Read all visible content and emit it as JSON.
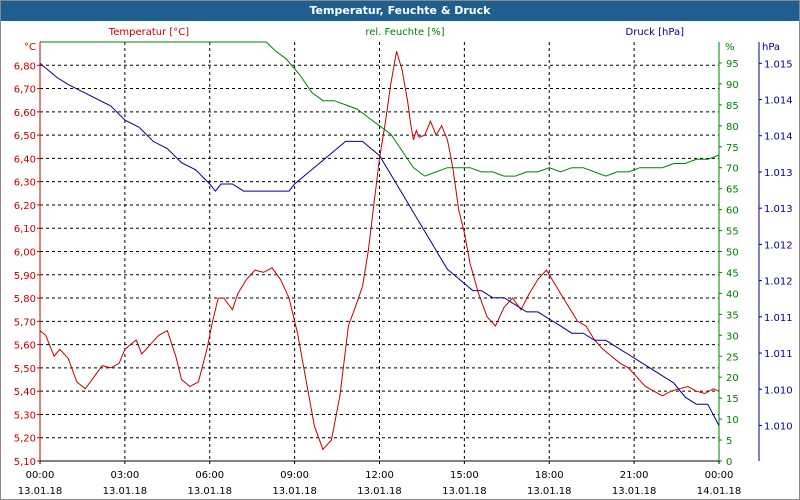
{
  "chart_data": {
    "type": "line",
    "title": "Temperatur, Feuchte & Druck",
    "colors": {
      "temperature": "#c00000",
      "humidity": "#008000",
      "pressure": "#00008b",
      "titlebar": "#1f5f8f",
      "grid": "#000000"
    },
    "axes": {
      "left": {
        "label": "Temperatur [°C]",
        "unit": "°C",
        "range": [
          5.1,
          6.9
        ],
        "ticks": [
          "6,80",
          "6,70",
          "6,60",
          "6,50",
          "6,40",
          "6,30",
          "6,20",
          "6,10",
          "6,00",
          "5,90",
          "5,80",
          "5,70",
          "5,60",
          "5,50",
          "5,40",
          "5,30",
          "5,20",
          "5,10"
        ]
      },
      "mid": {
        "label": "rel. Feuchte [%]",
        "unit": "%",
        "range": [
          0,
          100
        ],
        "ticks": [
          "95",
          "90",
          "85",
          "80",
          "75",
          "70",
          "65",
          "60",
          "55",
          "50",
          "45",
          "40",
          "35",
          "30",
          "25",
          "20",
          "15",
          "10",
          "5",
          "0"
        ]
      },
      "right": {
        "label": "Druck [hPa]",
        "unit": "hPa",
        "range": [
          1.0095,
          1.0154
        ],
        "ticks": [
          "1.015",
          "1.014",
          "1.014",
          "1.013",
          "1.013",
          "1.012",
          "1.012",
          "1.011",
          "1.011",
          "1.010",
          "1.010"
        ]
      },
      "x_ticks": [
        {
          "time": "00:00",
          "date": "13.01.18"
        },
        {
          "time": "03:00",
          "date": "13.01.18"
        },
        {
          "time": "06:00",
          "date": "13.01.18"
        },
        {
          "time": "09:00",
          "date": "13.01.18"
        },
        {
          "time": "12:00",
          "date": "13.01.18"
        },
        {
          "time": "15:00",
          "date": "13.01.18"
        },
        {
          "time": "18:00",
          "date": "13.01.18"
        },
        {
          "time": "21:00",
          "date": "13.01.18"
        },
        {
          "time": "00:00",
          "date": "14.01.18"
        }
      ]
    },
    "x_range_hours": [
      0,
      24
    ],
    "series": [
      {
        "name": "Temperatur [°C]",
        "x": [
          0,
          0.2,
          0.5,
          0.7,
          1.0,
          1.3,
          1.6,
          1.9,
          2.2,
          2.5,
          2.8,
          3.0,
          3.2,
          3.4,
          3.6,
          3.9,
          4.2,
          4.5,
          4.8,
          5.0,
          5.3,
          5.6,
          5.9,
          6.1,
          6.3,
          6.5,
          6.8,
          7.0,
          7.3,
          7.6,
          7.9,
          8.2,
          8.5,
          8.8,
          9.1,
          9.4,
          9.7,
          10.0,
          10.3,
          10.6,
          10.9,
          11.2,
          11.4,
          11.6,
          11.8,
          12.0,
          12.2,
          12.4,
          12.6,
          12.8,
          13.0,
          13.1,
          13.2,
          13.3,
          13.4,
          13.6,
          13.8,
          14.0,
          14.2,
          14.4,
          14.5,
          14.6,
          14.8,
          15.0,
          15.2,
          15.5,
          15.8,
          16.1,
          16.4,
          16.7,
          17.0,
          17.3,
          17.6,
          17.9,
          18.2,
          18.5,
          18.8,
          19.0,
          19.3,
          19.6,
          19.9,
          20.2,
          20.5,
          20.8,
          21.1,
          21.4,
          21.7,
          22.0,
          22.3,
          22.6,
          22.9,
          23.2,
          23.5,
          23.8,
          24.0
        ],
        "values": [
          5.66,
          5.64,
          5.55,
          5.58,
          5.54,
          5.44,
          5.41,
          5.46,
          5.51,
          5.5,
          5.52,
          5.58,
          5.6,
          5.62,
          5.56,
          5.6,
          5.64,
          5.66,
          5.55,
          5.45,
          5.42,
          5.44,
          5.58,
          5.7,
          5.8,
          5.8,
          5.75,
          5.82,
          5.88,
          5.92,
          5.91,
          5.93,
          5.88,
          5.8,
          5.65,
          5.45,
          5.25,
          5.15,
          5.19,
          5.38,
          5.68,
          5.78,
          5.85,
          6.0,
          6.2,
          6.4,
          6.55,
          6.72,
          6.86,
          6.78,
          6.64,
          6.55,
          6.48,
          6.52,
          6.49,
          6.5,
          6.56,
          6.5,
          6.54,
          6.48,
          6.42,
          6.35,
          6.18,
          6.08,
          5.95,
          5.82,
          5.72,
          5.68,
          5.76,
          5.8,
          5.75,
          5.82,
          5.88,
          5.92,
          5.86,
          5.8,
          5.74,
          5.7,
          5.68,
          5.62,
          5.58,
          5.55,
          5.52,
          5.5,
          5.46,
          5.42,
          5.4,
          5.38,
          5.4,
          5.41,
          5.42,
          5.4,
          5.39,
          5.41,
          5.4
        ],
        "values_note": "estimated from gridlines"
      },
      {
        "name": "rel. Feuchte [%]",
        "x": [
          0,
          1,
          2,
          3,
          4,
          5,
          6,
          7,
          8,
          8.3,
          8.7,
          9.2,
          9.6,
          10.0,
          10.4,
          10.8,
          11.2,
          11.6,
          12.0,
          12.4,
          12.8,
          13.2,
          13.6,
          14.0,
          14.4,
          14.8,
          15.2,
          15.6,
          16.0,
          16.4,
          16.8,
          17.2,
          17.6,
          18.0,
          18.4,
          18.8,
          19.2,
          19.6,
          20.0,
          20.4,
          20.8,
          21.2,
          21.6,
          22.0,
          22.4,
          22.8,
          23.2,
          23.6,
          24.0
        ],
        "values": [
          100,
          100,
          100,
          100,
          100,
          100,
          100,
          100,
          100,
          98,
          96,
          92,
          88,
          86,
          86,
          85,
          84,
          82,
          80,
          78,
          74,
          70,
          68,
          69,
          70,
          70,
          70,
          69,
          69,
          68,
          68,
          69,
          69,
          70,
          69,
          70,
          70,
          69,
          68,
          69,
          69,
          70,
          70,
          70,
          71,
          71,
          72,
          72,
          73
        ],
        "values_note": "estimated from gridlines"
      },
      {
        "name": "Druck [hPa]",
        "x": [
          0,
          0.3,
          0.6,
          1.0,
          1.5,
          2.0,
          2.5,
          3.0,
          3.5,
          4.0,
          4.5,
          5.0,
          5.5,
          6.0,
          6.2,
          6.4,
          6.8,
          7.2,
          7.6,
          8.0,
          8.4,
          8.8,
          9.0,
          9.3,
          9.6,
          9.9,
          10.2,
          10.5,
          10.8,
          11.1,
          11.4,
          11.7,
          12.0,
          12.3,
          12.6,
          12.9,
          13.2,
          13.5,
          13.8,
          14.1,
          14.4,
          14.7,
          15.0,
          15.3,
          15.6,
          16.0,
          16.4,
          16.8,
          17.2,
          17.6,
          18.0,
          18.4,
          18.8,
          19.2,
          19.6,
          20.0,
          20.4,
          20.8,
          21.2,
          21.6,
          22.0,
          22.4,
          22.8,
          23.2,
          23.6,
          24.0
        ],
        "values": [
          1.0151,
          1.015,
          1.0149,
          1.0148,
          1.0147,
          1.0146,
          1.0145,
          1.0143,
          1.0142,
          1.014,
          1.0139,
          1.0137,
          1.0136,
          1.0134,
          1.0133,
          1.0134,
          1.0134,
          1.0133,
          1.0133,
          1.0133,
          1.0133,
          1.0133,
          1.0134,
          1.0135,
          1.0136,
          1.0137,
          1.0138,
          1.0139,
          1.014,
          1.014,
          1.014,
          1.0139,
          1.0138,
          1.0136,
          1.0134,
          1.0132,
          1.013,
          1.0128,
          1.0126,
          1.0124,
          1.0122,
          1.0121,
          1.012,
          1.0119,
          1.0119,
          1.0118,
          1.0118,
          1.0117,
          1.0116,
          1.0116,
          1.0115,
          1.0114,
          1.0113,
          1.0113,
          1.0112,
          1.0112,
          1.0111,
          1.011,
          1.0109,
          1.0108,
          1.0107,
          1.0106,
          1.0104,
          1.0103,
          1.0103,
          1.01
        ],
        "values_note": "estimated from gridlines"
      }
    ]
  }
}
